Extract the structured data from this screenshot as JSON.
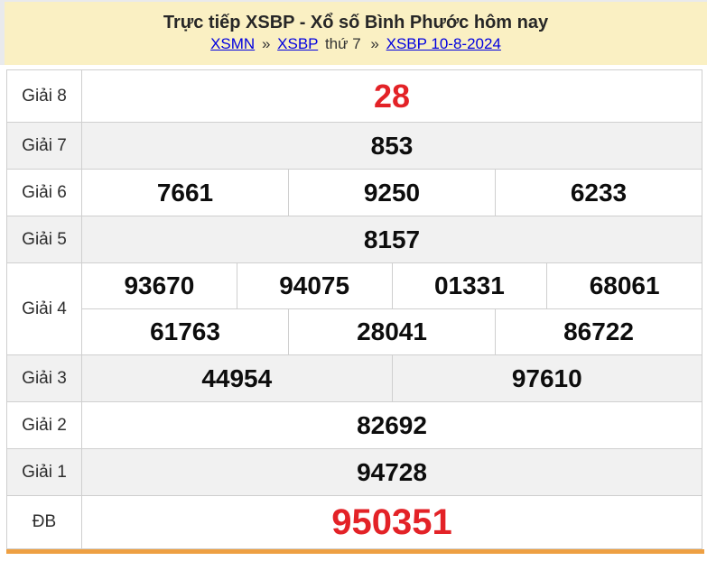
{
  "header": {
    "title": "Trực tiếp XSBP - Xổ số Bình Phước hôm nay",
    "breadcrumb": [
      {
        "label": "XSMN",
        "link": true
      },
      {
        "label": "»",
        "link": false
      },
      {
        "label": "XSBP",
        "link": true
      },
      {
        "label": "thứ 7",
        "link": false
      },
      {
        "label": "»",
        "link": false
      },
      {
        "label": "XSBP 10-8-2024",
        "link": true
      }
    ]
  },
  "results": {
    "rows": [
      {
        "label": "Giải 8",
        "cells": [
          "28"
        ],
        "highlight": "red"
      },
      {
        "label": "Giải 7",
        "cells": [
          "853"
        ],
        "highlight": "none"
      },
      {
        "label": "Giải 6",
        "cells": [
          "7661",
          "9250",
          "6233"
        ],
        "highlight": "none"
      },
      {
        "label": "Giải 5",
        "cells": [
          "8157"
        ],
        "highlight": "none"
      },
      {
        "label": "Giải 4",
        "cells": [
          "93670",
          "94075",
          "01331",
          "68061",
          "61763",
          "28041",
          "86722"
        ],
        "highlight": "none"
      },
      {
        "label": "Giải 3",
        "cells": [
          "44954",
          "97610"
        ],
        "highlight": "none"
      },
      {
        "label": "Giải 2",
        "cells": [
          "82692"
        ],
        "highlight": "none"
      },
      {
        "label": "Giải 1",
        "cells": [
          "94728"
        ],
        "highlight": "none"
      },
      {
        "label": "ĐB",
        "cells": [
          "950351"
        ],
        "highlight": "red"
      }
    ]
  },
  "colors": {
    "header_background": "#faf0c3",
    "link_blue": "#0000e0",
    "highlight_red": "#e32227",
    "row_alt_gray": "#f1f1f1",
    "table_border": "#cfcfcf",
    "bottom_bar_orange": "#eea043"
  }
}
